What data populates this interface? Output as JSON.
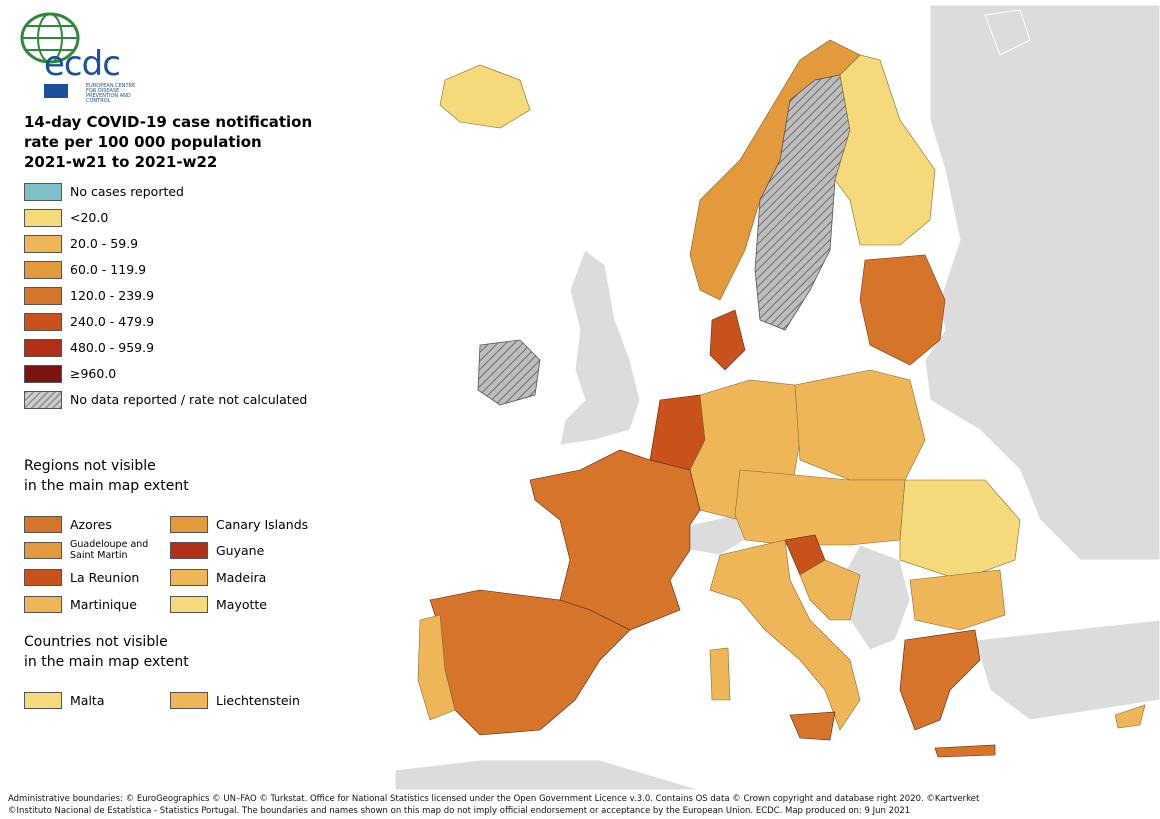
{
  "logo": {
    "text": "ecdc",
    "subtitle": "EUROPEAN CENTRE FOR DISEASE PREVENTION AND CONTROL"
  },
  "title": {
    "line1": "14-day COVID-19 case notification",
    "line2": "rate per 100 000 population",
    "line3": "2021-w21 to 2021-w22"
  },
  "legend": [
    {
      "label": "No cases reported",
      "color": "#7fbfc6"
    },
    {
      "label": "<20.0",
      "color": "#f5d97a"
    },
    {
      "label": "20.0 - 59.9",
      "color": "#efb658"
    },
    {
      "label": "60.0 - 119.9",
      "color": "#e29a3c"
    },
    {
      "label": "120.0 - 239.9",
      "color": "#d6742a"
    },
    {
      "label": "240.0 - 479.9",
      "color": "#c9521c"
    },
    {
      "label": "480.0 - 959.9",
      "color": "#b03018"
    },
    {
      "label": "≥960.0",
      "color": "#7a1410"
    },
    {
      "label": "No data reported / rate not calculated",
      "color": "hatch"
    }
  ],
  "regions_title": {
    "line1": "Regions not visible",
    "line2": "in the main map extent"
  },
  "regions": [
    {
      "label": "Azores",
      "color": "#d6742a"
    },
    {
      "label": "Canary Islands",
      "color": "#e29a3c"
    },
    {
      "label": "Guadeloupe and Saint Martin",
      "color": "#e29a3c"
    },
    {
      "label": "Guyane",
      "color": "#b03018"
    },
    {
      "label": "La Reunion",
      "color": "#c9521c"
    },
    {
      "label": "Madeira",
      "color": "#efb658"
    },
    {
      "label": "Martinique",
      "color": "#efb658"
    },
    {
      "label": "Mayotte",
      "color": "#f5d97a"
    }
  ],
  "countries_title": {
    "line1": "Countries not visible",
    "line2": "in the main map extent"
  },
  "countries": [
    {
      "label": "Malta",
      "color": "#f5d97a"
    },
    {
      "label": "Liechtenstein",
      "color": "#efb658"
    }
  ],
  "footer": {
    "line1": "Administrative boundaries: © EuroGeographics © UN–FAO © Turkstat. Office for National Statistics licensed under the Open Government Licence v.3.0. Contains OS data © Crown copyright and database right 2020. ©Kartverket",
    "line2": "©Instituto Nacional de Estatística - Statistics Portugal. The boundaries and names shown on this map do not imply official endorsement or acceptance by the European Union. ECDC. Map produced on: 9 Jun 2021"
  }
}
